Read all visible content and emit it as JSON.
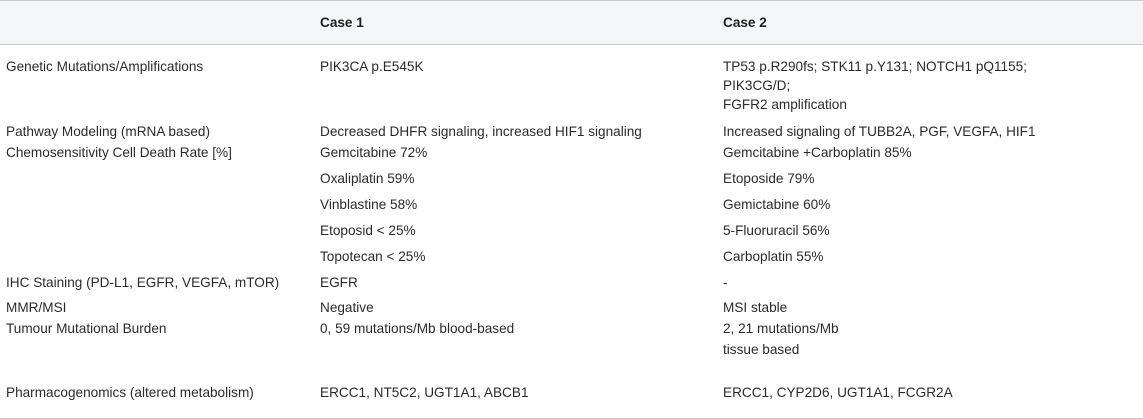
{
  "headers": {
    "col0": "",
    "col1": "Case 1",
    "col2": "Case 2"
  },
  "rows": {
    "genetic": {
      "label": "Genetic Mutations/Amplifications",
      "case1": "PIK3CA p.E545K",
      "case2_line1": "TP53 p.R290fs; STK11 p.Y131; NOTCH1 pQ1155;",
      "case2_line2": "PIK3CG/D;",
      "case2_line3": "FGFR2 amplification"
    },
    "pathway": {
      "label": "Pathway Modeling (mRNA based)",
      "case1": "Decreased DHFR signaling, increased HIF1 signaling",
      "case2": "Increased signaling of TUBB2A, PGF, VEGFA, HIF1"
    },
    "chemo": {
      "label": "Chemosensitivity Cell Death Rate [%]",
      "case1": [
        "Gemcitabine 72%",
        "Oxaliplatin 59%",
        "Vinblastine 58%",
        "Etoposid < 25%",
        "Topotecan < 25%"
      ],
      "case2": [
        "Gemcitabine +Carboplatin 85%",
        "Etoposide 79%",
        "Gemictabine 60%",
        "5-Fluoruracil 56%",
        "Carboplatin 55%"
      ]
    },
    "ihc": {
      "label": "IHC Staining (PD-L1, EGFR, VEGFA, mTOR)",
      "case1": "EGFR",
      "case2": "-"
    },
    "mmr": {
      "label": "MMR/MSI",
      "case1": "Negative",
      "case2": "MSI stable"
    },
    "tmb": {
      "label": "Tumour Mutational Burden",
      "case1": "0, 59 mutations/Mb blood-based",
      "case2_line1": "2, 21 mutations/Mb",
      "case2_line2": "tissue based"
    },
    "pharma": {
      "label": "Pharmacogenomics (altered metabolism)",
      "case1": "ERCC1, NT5C2, UGT1A1, ABCB1",
      "case2": "ERCC1, CYP2D6, UGT1A1, FCGR2A"
    }
  }
}
